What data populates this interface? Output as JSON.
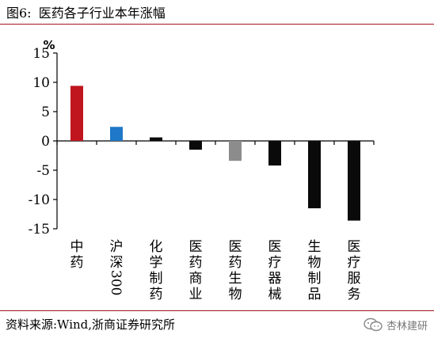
{
  "figure_title": "图6:\t医药各子行业本年涨幅",
  "source_note": "资料来源:Wind,浙商证券研究所",
  "watermark_text": "杏林建研",
  "colors": {
    "rule": "#a3151c",
    "bar_highlight": "#c0151e",
    "bar_index": "#1f78c8",
    "bar_default": "#0a0a0a",
    "bar_grey": "#8c8c8c",
    "axis": "#000000"
  },
  "chart_data": {
    "type": "bar",
    "title": "",
    "xlabel": "",
    "ylabel": "%",
    "ylim": [
      -15,
      15
    ],
    "yticks": [
      15,
      10,
      5,
      0,
      -5,
      -10,
      -15
    ],
    "grid": false,
    "legend": "none",
    "categories": [
      "中药",
      "沪深300",
      "化学制药",
      "医药商业",
      "医药生物",
      "医疗器械",
      "生物制品",
      "医疗服务"
    ],
    "values": [
      9.4,
      2.4,
      0.6,
      -1.5,
      -3.4,
      -4.2,
      -11.5,
      -13.6
    ],
    "bar_colors": [
      "bar_highlight",
      "bar_index",
      "bar_default",
      "bar_default",
      "bar_grey",
      "bar_default",
      "bar_default",
      "bar_default"
    ]
  }
}
